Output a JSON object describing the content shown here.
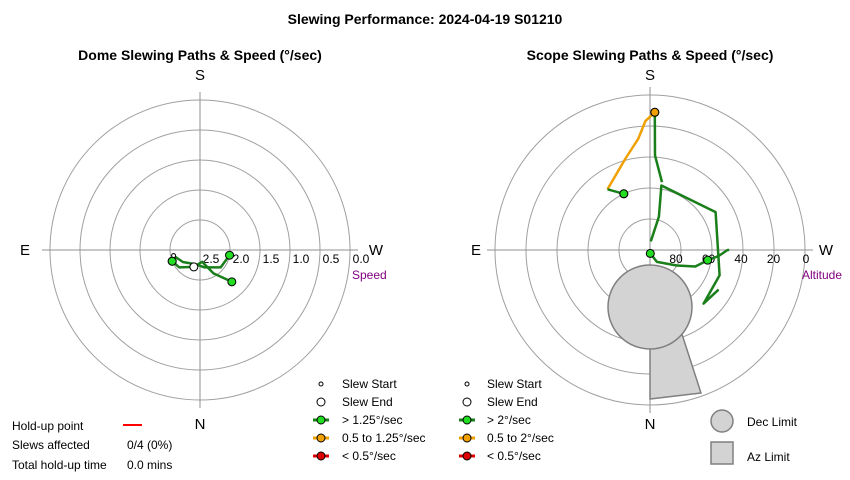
{
  "page_title": "Slewing Performance: 2024-04-19 S01210",
  "colors": {
    "ring": "#a0a0a0",
    "axis": "#909090",
    "fast": "#1a7f1a",
    "fast_marker": "#22dd22",
    "medium": "#f0a000",
    "slow": "#dd0000",
    "holdup": "#ff0000",
    "unit_label": "#800080",
    "limit_fill": "#d3d3d3",
    "limit_stroke": "#808080"
  },
  "chart_data": [
    {
      "type": "polar-path",
      "title": "Dome Slewing Paths & Speed (°/sec)",
      "compass": {
        "top": "S",
        "bottom": "N",
        "left": "E",
        "right": "W"
      },
      "radial_ticks": [
        "2.5",
        "2.0",
        "1.5",
        "1.0",
        "0.5",
        "0.0"
      ],
      "radial_label": "Speed",
      "radial_range": [
        2.5,
        0.0
      ],
      "paths": [
        {
          "speed_class": "fast",
          "points": [
            [
              135,
              1.75
            ],
            [
              150,
              2.05
            ],
            [
              170,
              2.3
            ],
            [
              200,
              2.2
            ],
            [
              230,
              2.05
            ],
            [
              248,
              2.0
            ]
          ]
        },
        {
          "speed_class": "fast",
          "points": [
            [
              100,
              2.0
            ],
            [
              130,
              2.05
            ],
            [
              165,
              2.2
            ],
            [
              200,
              2.25
            ],
            [
              235,
              2.15
            ],
            [
              258,
              2.05
            ]
          ]
        }
      ],
      "start_markers": [
        [
          100,
          2.0
        ],
        [
          258,
          2.05
        ]
      ],
      "end_markers": [
        [
          200,
          2.2
        ],
        [
          248,
          2.0
        ]
      ],
      "fast_markers": [
        [
          135,
          1.75
        ],
        [
          248,
          2.0
        ],
        [
          100,
          2.0
        ]
      ],
      "legend": [
        "Slew Start",
        "Slew End",
        "> 1.25°/sec",
        "0.5 to 1.25°/sec",
        "< 0.5°/sec"
      ],
      "summary": {
        "holdup_label": "Hold-up point",
        "slews_affected_label": "Slews affected",
        "slews_affected_value": "0/4 (0%)",
        "total_holdup_label": "Total hold-up time",
        "total_holdup_value": "0.0 mins"
      }
    },
    {
      "type": "polar-path",
      "title": "Scope Slewing Paths & Speed (°/sec)",
      "compass": {
        "top": "S",
        "bottom": "N",
        "left": "E",
        "right": "W"
      },
      "radial_ticks": [
        "80",
        "60",
        "40",
        "20",
        "0"
      ],
      "radial_label": "Altitude",
      "radial_range": [
        90,
        0
      ],
      "paths": [
        {
          "speed_class": "fast",
          "points": [
            [
              175,
              88
            ],
            [
              150,
              82
            ],
            [
              120,
              72
            ],
            [
              110,
              62
            ],
            [
              100,
              56
            ],
            [
              95,
              50
            ],
            [
              90,
              45
            ],
            [
              90,
              44
            ]
          ]
        },
        {
          "speed_class": "fast",
          "points": [
            [
              5,
              85
            ],
            [
              15,
              70
            ],
            [
              10,
              52
            ],
            [
              60,
              46
            ],
            [
              110,
              47
            ],
            [
              135,
              46
            ],
            [
              120,
              44
            ]
          ]
        },
        {
          "speed_class": "fast",
          "points": [
            [
              10,
              50
            ],
            [
              3,
              35
            ],
            [
              2,
              10
            ]
          ]
        },
        {
          "speed_class": "medium",
          "points": [
            [
              2,
              10
            ],
            [
              -2,
              15
            ],
            [
              -6,
              25
            ],
            [
              -15,
              35
            ],
            [
              -35,
              47
            ]
          ]
        },
        {
          "speed_class": "fast",
          "points": [
            [
              -35,
              47
            ],
            [
              -25,
              54
            ]
          ]
        }
      ],
      "start_markers": [
        [
          2,
          10
        ],
        [
          175,
          88
        ]
      ],
      "end_markers": [
        [
          2,
          10
        ],
        [
          -25,
          54
        ]
      ],
      "fast_markers": [
        [
          -25,
          54
        ],
        [
          100,
          56
        ],
        [
          175,
          88
        ]
      ],
      "medium_markers": [
        [
          2,
          10
        ]
      ],
      "legend": [
        "Slew Start",
        "Slew End",
        "> 2°/sec",
        "0.5 to 2°/sec",
        "< 0.5°/sec"
      ],
      "limits": {
        "dec_label": "Dec Limit",
        "az_label": "Az Limit"
      }
    }
  ]
}
